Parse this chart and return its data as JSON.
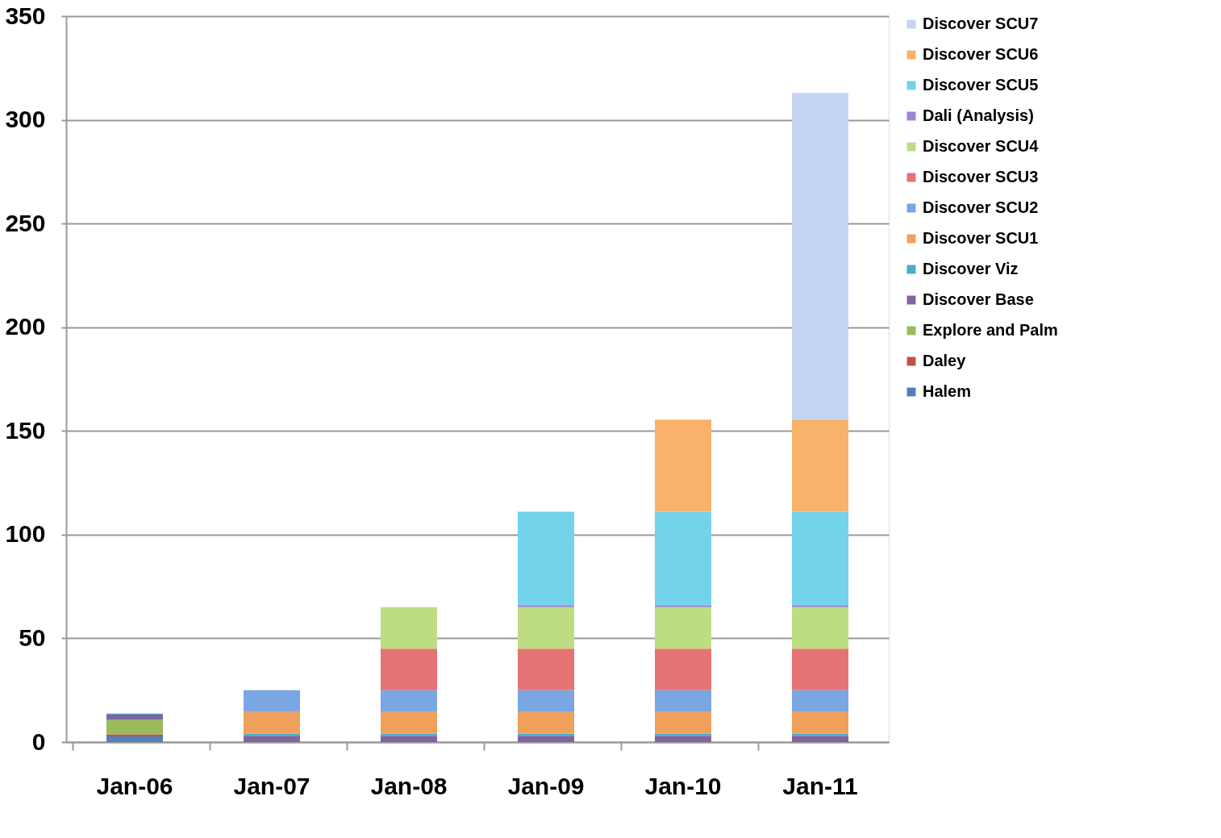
{
  "chart_data": {
    "type": "bar",
    "stacked": true,
    "categories": [
      "Jan-06",
      "Jan-07",
      "Jan-08",
      "Jan-09",
      "Jan-10",
      "Jan-11"
    ],
    "ylim": [
      0,
      350
    ],
    "yticks": [
      0,
      50,
      100,
      150,
      200,
      250,
      300,
      350
    ],
    "grid": "y",
    "legend": "right",
    "series": [
      {
        "name": "Halem",
        "color": "#4f81bd",
        "values": [
          2.7,
          null,
          null,
          null,
          null,
          null
        ]
      },
      {
        "name": "Daley",
        "color": "#c0504d",
        "values": [
          1,
          null,
          null,
          null,
          null,
          null
        ]
      },
      {
        "name": "Explore and Palm",
        "color": "#9bbb59",
        "values": [
          7,
          null,
          null,
          null,
          null,
          null
        ]
      },
      {
        "name": "Discover Base",
        "color": "#8064a2",
        "values": [
          2.5,
          3,
          3,
          3,
          3,
          3
        ]
      },
      {
        "name": "Discover Viz",
        "color": "#4bacc6",
        "values": [
          0.5,
          1,
          1,
          1,
          1,
          1
        ]
      },
      {
        "name": "Discover SCU1",
        "color": "#f0a05a",
        "values": [
          null,
          10.5,
          10.5,
          10.5,
          10.5,
          10.5
        ]
      },
      {
        "name": "Discover SCU2",
        "color": "#7aa6e3",
        "values": [
          null,
          10.5,
          10.5,
          10.5,
          10.5,
          10.5
        ]
      },
      {
        "name": "Discover SCU3",
        "color": "#e57373",
        "values": [
          null,
          null,
          20,
          20,
          20,
          20
        ]
      },
      {
        "name": "Discover SCU4",
        "color": "#bedd83",
        "values": [
          null,
          null,
          20,
          20,
          20,
          20
        ]
      },
      {
        "name": "Dali (Analysis)",
        "color": "#9f83d4",
        "values": [
          null,
          null,
          null,
          1,
          1,
          1
        ]
      },
      {
        "name": "Discover SCU5",
        "color": "#72d3ea",
        "values": [
          null,
          null,
          null,
          45,
          45,
          45
        ]
      },
      {
        "name": "Discover SCU6",
        "color": "#f9b26a",
        "values": [
          null,
          null,
          null,
          null,
          44.5,
          44.5
        ]
      },
      {
        "name": "Discover SCU7",
        "color": "#c3d5f2",
        "values": [
          null,
          null,
          null,
          null,
          null,
          157.5
        ]
      }
    ]
  }
}
